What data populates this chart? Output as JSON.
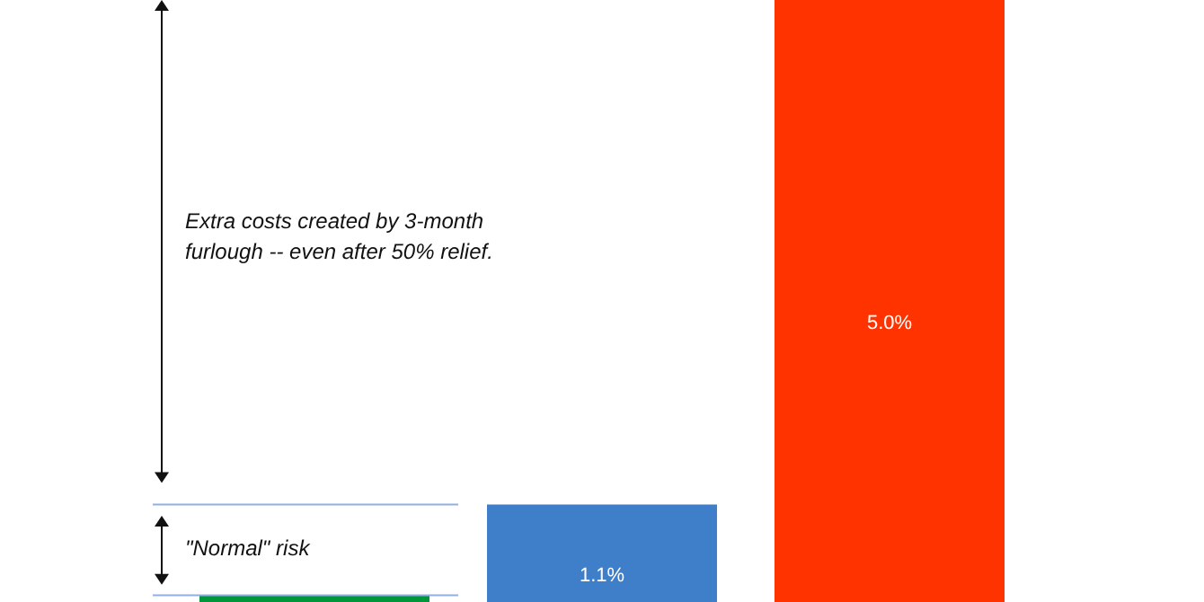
{
  "chart_data": {
    "type": "bar",
    "categories": [
      null,
      null,
      null
    ],
    "values": [
      0.4,
      1.1,
      5.0
    ],
    "colors": [
      "#00973a",
      "#3f7ec8",
      "#ff3300"
    ],
    "value_labels": [
      null,
      "1.1%",
      "5.0%"
    ],
    "tick_labels": false,
    "ref_lines": [
      {
        "axis": "y",
        "value": 1.1,
        "color": "#8fb0e0"
      },
      {
        "axis": "y",
        "value": 0.4,
        "color": "#8fb0e0"
      }
    ],
    "annotations": [
      "Extra costs created by 3-month furlough -- even after 50% relief.",
      "\"Normal\" risk"
    ]
  }
}
